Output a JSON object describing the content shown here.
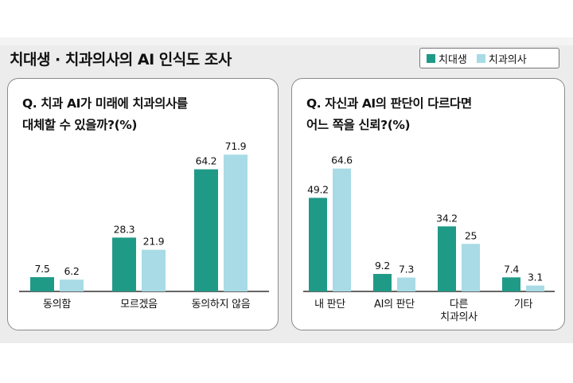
{
  "header": {
    "title": "치대생 · 치과의사의 AI 인식도 조사"
  },
  "legend": {
    "items": [
      {
        "label": "치대생",
        "color": "#1f9a87"
      },
      {
        "label": "치과의사",
        "color": "#a8dbe5"
      }
    ]
  },
  "chart_data": [
    {
      "type": "bar",
      "title": "Q. 치과 AI가 미래에 치과의사를\n대체할 수 있을까?(%)",
      "categories": [
        "동의함",
        "모르겠음",
        "동의하지 않음"
      ],
      "series": [
        {
          "name": "치대생",
          "values": [
            7.5,
            28.3,
            64.2
          ]
        },
        {
          "name": "치과의사",
          "values": [
            6.2,
            21.9,
            71.9
          ]
        }
      ],
      "value_labels": [
        [
          "7.5",
          "28.3",
          "64.2"
        ],
        [
          "6.2",
          "21.9",
          "71.9"
        ]
      ],
      "ylim": [
        0,
        75
      ],
      "grid": false,
      "legend": "top-right"
    },
    {
      "type": "bar",
      "title": "Q. 자신과 AI의 판단이 다르다면\n어느 쪽을 신뢰?(%)",
      "categories": [
        "내 판단",
        "AI의 판단",
        "다른\n치과의사",
        "기타"
      ],
      "series": [
        {
          "name": "치대생",
          "values": [
            49.2,
            9.2,
            34.2,
            7.4
          ]
        },
        {
          "name": "치과의사",
          "values": [
            64.6,
            7.3,
            25,
            3.1
          ]
        }
      ],
      "value_labels": [
        [
          "49.2",
          "9.2",
          "34.2",
          "7.4"
        ],
        [
          "64.6",
          "7.3",
          "25",
          "3.1"
        ]
      ],
      "ylim": [
        0,
        75
      ],
      "grid": false,
      "legend": "top-right"
    }
  ]
}
